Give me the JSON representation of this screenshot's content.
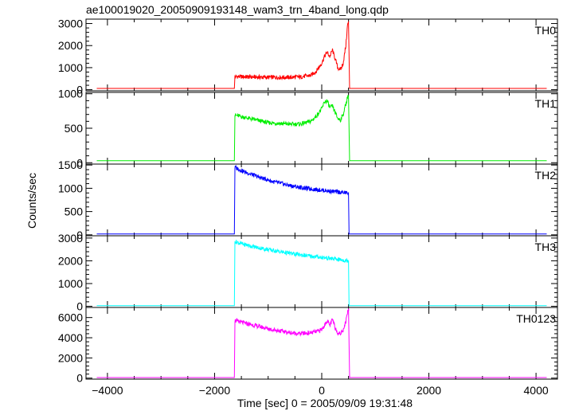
{
  "title": "ae100019020_20050909193148_wam3_trn_4band_long.qdp",
  "ylabel": "Counts/sec",
  "xlabel": "Time [sec] 0 = 2005/09/09 19:31:48",
  "chart_data": {
    "type": "line",
    "title": "ae100019020_20050909193148_wam3_trn_4band_long.qdp",
    "xlabel": "Time [sec] 0 = 2005/09/09 19:31:48",
    "ylabel": "Counts/sec",
    "xlim": [
      -4400,
      4400
    ],
    "x_ticks": [
      -4000,
      -2000,
      0,
      2000,
      4000
    ],
    "x_tick_labels": [
      "−4000",
      "−2000",
      "0",
      "2000",
      "4000"
    ],
    "panels": [
      {
        "name": "TH0",
        "color": "#ff0000",
        "ylim": [
          -50,
          3200
        ],
        "y_ticks": [
          0,
          1000,
          2000,
          3000
        ],
        "y_tick_labels": [
          "0",
          "1000",
          "2000",
          "3000"
        ],
        "x": [
          -4200,
          -1630,
          -1620,
          -1400,
          -1000,
          -600,
          -400,
          -200,
          -100,
          0,
          50,
          100,
          150,
          200,
          250,
          300,
          350,
          400,
          450,
          480,
          500,
          520,
          4200
        ],
        "values": [
          60,
          60,
          600,
          580,
          560,
          560,
          580,
          650,
          850,
          1200,
          1500,
          1700,
          1500,
          1800,
          1400,
          1000,
          900,
          1200,
          2000,
          2900,
          3100,
          60,
          60
        ]
      },
      {
        "name": "TH1",
        "color": "#00ee00",
        "ylim": [
          -20,
          1020
        ],
        "y_ticks": [
          0,
          500,
          1000
        ],
        "y_tick_labels": [
          "0",
          "500",
          "1000"
        ],
        "x": [
          -4200,
          -1630,
          -1620,
          -1400,
          -1000,
          -600,
          -400,
          -200,
          -100,
          0,
          50,
          100,
          150,
          200,
          250,
          300,
          350,
          400,
          450,
          480,
          500,
          520,
          4200
        ],
        "values": [
          30,
          30,
          690,
          650,
          580,
          560,
          560,
          600,
          680,
          780,
          880,
          900,
          800,
          820,
          730,
          640,
          620,
          700,
          850,
          950,
          980,
          30,
          30
        ]
      },
      {
        "name": "TH2",
        "color": "#0000ff",
        "ylim": [
          -20,
          1520
        ],
        "y_ticks": [
          0,
          500,
          1000,
          1500
        ],
        "y_tick_labels": [
          "0",
          "500",
          "1000",
          "1500"
        ],
        "x": [
          -4200,
          -1630,
          -1620,
          -1500,
          -1200,
          -900,
          -600,
          -300,
          0,
          300,
          500,
          510,
          4200
        ],
        "values": [
          20,
          20,
          1450,
          1380,
          1250,
          1140,
          1060,
          1000,
          960,
          920,
          900,
          20,
          20
        ]
      },
      {
        "name": "TH3",
        "color": "#00ffff",
        "ylim": [
          -50,
          3100
        ],
        "y_ticks": [
          0,
          1000,
          2000,
          3000
        ],
        "y_tick_labels": [
          "0",
          "1000",
          "2000",
          "3000"
        ],
        "x": [
          -4200,
          -1630,
          -1620,
          -1500,
          -1200,
          -900,
          -600,
          -300,
          0,
          300,
          500,
          510,
          4200
        ],
        "values": [
          30,
          30,
          2850,
          2750,
          2580,
          2450,
          2330,
          2230,
          2150,
          2060,
          2000,
          30,
          30
        ]
      },
      {
        "name": "TH0123",
        "color": "#ff00ff",
        "ylim": [
          -100,
          7000
        ],
        "y_ticks": [
          0,
          2000,
          4000,
          6000
        ],
        "y_tick_labels": [
          "0",
          "2000",
          "4000",
          "6000"
        ],
        "x": [
          -4200,
          -1630,
          -1620,
          -1400,
          -1000,
          -600,
          -400,
          -200,
          -100,
          0,
          50,
          100,
          150,
          200,
          250,
          300,
          350,
          400,
          450,
          480,
          500,
          520,
          4200
        ],
        "values": [
          60,
          60,
          5700,
          5400,
          4900,
          4500,
          4400,
          4500,
          4600,
          4800,
          5200,
          5700,
          5200,
          5800,
          5000,
          4500,
          4400,
          4800,
          5600,
          6500,
          6900,
          60,
          60
        ]
      }
    ]
  }
}
